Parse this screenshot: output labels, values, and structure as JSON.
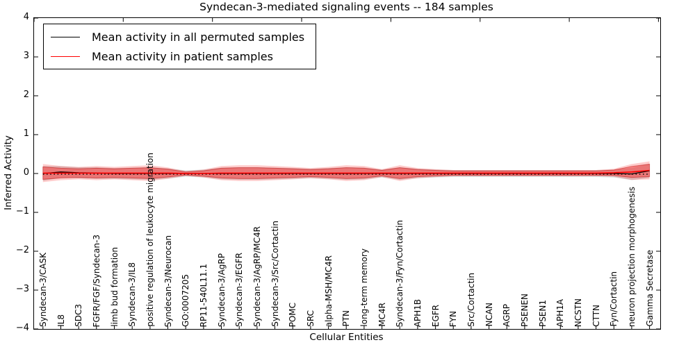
{
  "title": "Syndecan-3-mediated signaling events -- 184 samples",
  "axes": {
    "ylabel": "Inferred Activity",
    "xlabel": "Cellular Entities",
    "ytick_labels": [
      "4",
      "3",
      "2",
      "1",
      "0",
      "−1",
      "−2",
      "−3",
      "−4"
    ]
  },
  "legend": {
    "items": [
      {
        "label": "Mean activity in all permuted samples",
        "color": "#000000"
      },
      {
        "label": "Mean activity in patient samples",
        "color": "#ff0000"
      }
    ]
  },
  "chart_data": {
    "type": "line",
    "title": "Syndecan-3-mediated signaling events -- 184 samples",
    "xlabel": "Cellular Entities",
    "ylabel": "Inferred Activity",
    "ylim": [
      -4,
      4
    ],
    "grid": false,
    "legend_position": "upper left",
    "band_colors": {
      "patient": "#ff0000",
      "permuted": "#9e9e9e"
    },
    "categories": [
      "Syndecan-3/CASK",
      "IL8",
      "SDC3",
      "FGFR/FGF/Syndecan-3",
      "limb bud formation",
      "Syndecan-3/IL8",
      "positive regulation of leukocyte migration",
      "Syndecan-3/Neurocan",
      "GO:0007205",
      "RP11-540L11.1",
      "Syndecan-3/AgRP",
      "Syndecan-3/EGFR",
      "Syndecan-3/AgRP/MC4R",
      "Syndecan-3/Src/Cortactin",
      "POMC",
      "SRC",
      "alpha-MSH/MC4R",
      "PTN",
      "long-term memory",
      "MC4R",
      "Syndecan-3/Fyn/Cortactin",
      "APH1B",
      "EGFR",
      "FYN",
      "Src/Cortactin",
      "NCAN",
      "AGRP",
      "PSENEN",
      "PSEN1",
      "APH1A",
      "NCSTN",
      "CTTN",
      "Fyn/Cortactin",
      "neuron projection morphogenesis",
      "Gamma Secretase"
    ],
    "series": [
      {
        "name": "Mean activity in all permuted samples",
        "color": "#000000",
        "values": [
          0,
          0.04,
          0.02,
          0.01,
          0,
          0,
          0,
          0,
          0,
          0,
          0,
          0,
          0,
          0,
          0,
          0,
          0,
          0,
          0,
          0,
          0,
          0,
          0,
          0,
          0,
          0,
          0,
          0,
          0,
          0,
          0,
          0,
          0,
          -0.01,
          0.07
        ],
        "std": [
          0.19,
          0.15,
          0.14,
          0.15,
          0.14,
          0.15,
          0.16,
          0.13,
          0.08,
          0.1,
          0.15,
          0.16,
          0.16,
          0.15,
          0.14,
          0.12,
          0.14,
          0.16,
          0.15,
          0.1,
          0.16,
          0.12,
          0.1,
          0.09,
          0.09,
          0.09,
          0.09,
          0.09,
          0.09,
          0.09,
          0.09,
          0.09,
          0.1,
          0.16,
          0.18
        ]
      },
      {
        "name": "Mean activity in patient samples",
        "color": "#ff0000",
        "values": [
          0.01,
          0.01,
          0.01,
          0.01,
          0.01,
          0.01,
          0.01,
          0.01,
          0,
          0,
          0.01,
          0.01,
          0.01,
          0.01,
          0.01,
          0.01,
          0.01,
          0.01,
          0.01,
          0.01,
          0.01,
          0.01,
          0.01,
          0.01,
          0.01,
          0.01,
          0.01,
          0.01,
          0.01,
          0.01,
          0.01,
          0.01,
          0.02,
          0.04,
          0.08
        ],
        "std": [
          0.16,
          0.125,
          0.11,
          0.125,
          0.11,
          0.125,
          0.14,
          0.1,
          0.04,
          0.07,
          0.125,
          0.14,
          0.14,
          0.125,
          0.11,
          0.09,
          0.11,
          0.14,
          0.125,
          0.07,
          0.14,
          0.09,
          0.07,
          0.055,
          0.055,
          0.055,
          0.055,
          0.055,
          0.055,
          0.055,
          0.055,
          0.055,
          0.07,
          0.14,
          0.16
        ]
      }
    ]
  }
}
